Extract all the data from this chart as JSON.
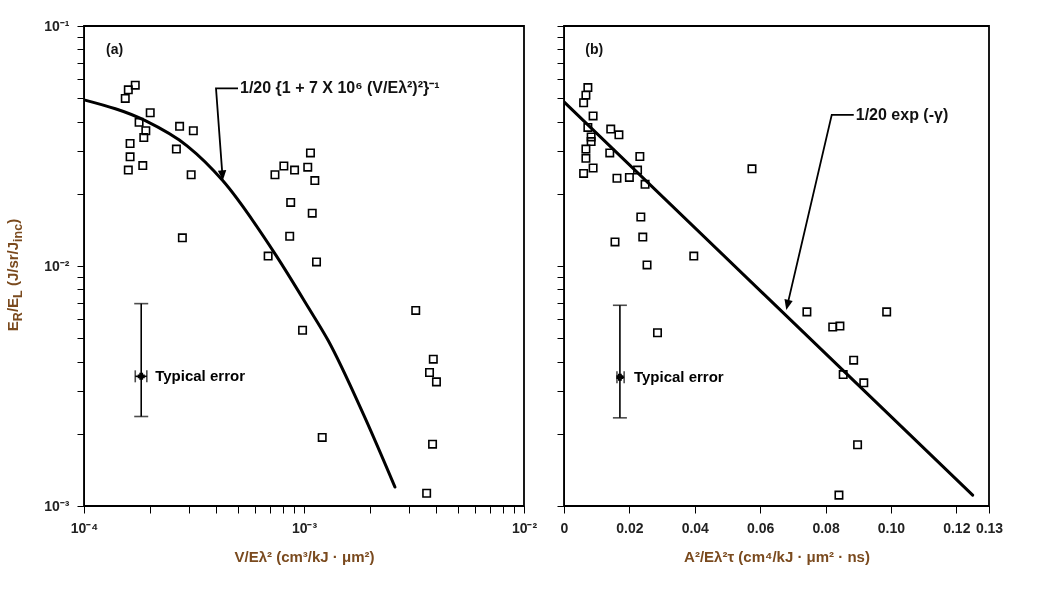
{
  "chart_data": [
    {
      "type": "scatter",
      "xlabel": "V/Eλ² (cm³/kJ · μm²)",
      "ylabel": "E$_{R}$/E$_{L}$ (J/sr/J$_{inc}$)",
      "log": "xy",
      "xlim": [
        0.0001,
        0.01
      ],
      "ylim": [
        0.001,
        0.1
      ],
      "xticks": [
        {
          "value": 0.0001,
          "label": "10⁻⁴"
        },
        {
          "value": 0.0002,
          "label": null
        },
        {
          "value": 0.0003,
          "label": null
        },
        {
          "value": 0.0004,
          "label": null
        },
        {
          "value": 0.0005,
          "label": null
        },
        {
          "value": 0.0006,
          "label": null
        },
        {
          "value": 0.0007,
          "label": null
        },
        {
          "value": 0.0008,
          "label": null
        },
        {
          "value": 0.0009,
          "label": null
        },
        {
          "value": 0.001,
          "label": "10⁻³"
        },
        {
          "value": 0.002,
          "label": null
        },
        {
          "value": 0.003,
          "label": null
        },
        {
          "value": 0.004,
          "label": null
        },
        {
          "value": 0.005,
          "label": null
        },
        {
          "value": 0.006,
          "label": null
        },
        {
          "value": 0.007,
          "label": null
        },
        {
          "value": 0.008,
          "label": null
        },
        {
          "value": 0.009,
          "label": null
        },
        {
          "value": 0.01,
          "label": "10⁻²"
        }
      ],
      "yticks": [
        {
          "value": 0.001,
          "label": "10⁻³"
        },
        {
          "value": 0.002,
          "label": null
        },
        {
          "value": 0.003,
          "label": null
        },
        {
          "value": 0.004,
          "label": null
        },
        {
          "value": 0.005,
          "label": null
        },
        {
          "value": 0.006,
          "label": null
        },
        {
          "value": 0.007,
          "label": null
        },
        {
          "value": 0.008,
          "label": null
        },
        {
          "value": 0.009,
          "label": null
        },
        {
          "value": 0.01,
          "label": "10⁻²"
        },
        {
          "value": 0.02,
          "label": null
        },
        {
          "value": 0.03,
          "label": null
        },
        {
          "value": 0.04,
          "label": null
        },
        {
          "value": 0.05,
          "label": null
        },
        {
          "value": 0.06,
          "label": null
        },
        {
          "value": 0.07,
          "label": null
        },
        {
          "value": 0.08,
          "label": null
        },
        {
          "value": 0.09,
          "label": null
        },
        {
          "value": 0.1,
          "label": "10⁻¹"
        }
      ],
      "annotations": [
        "(a)",
        "1/20 {1 + 7 X 10⁶ (V/Eλ²)²}⁻¹"
      ],
      "series": [
        {
          "type": "scatter",
          "marker": "square",
          "color": "#000000",
          "x": [
            0.000171,
            0.000159,
            0.000154,
            0.0002,
            0.000178,
            0.000191,
            0.000187,
            0.000162,
            0.000162,
            0.000185,
            0.000159,
            0.000272,
            0.000314,
            0.000263,
            0.000307,
            0.00028,
            0.000738,
            0.00081,
            0.000906,
            0.00104,
            0.00107,
            0.00112,
            0.00087,
            0.00109,
            0.000861,
            0.000687,
            0.00114,
            0.00322,
            0.000985,
            0.00387,
            0.00372,
            0.004,
            0.00121,
            0.00384,
            0.00361
          ],
          "values": [
            0.0567,
            0.0542,
            0.0499,
            0.0435,
            0.0397,
            0.0366,
            0.0343,
            0.0324,
            0.0285,
            0.0262,
            0.0251,
            0.0382,
            0.0366,
            0.0307,
            0.024,
            0.0131,
            0.024,
            0.0261,
            0.0251,
            0.0258,
            0.0296,
            0.0227,
            0.0184,
            0.0166,
            0.0133,
            0.011,
            0.0104,
            0.00653,
            0.0054,
            0.00409,
            0.0036,
            0.00329,
            0.00193,
            0.00181,
            0.00113
          ]
        },
        {
          "type": "line",
          "color": "#000000",
          "line_style": "solid",
          "x": [
            0.000102,
            0.000189,
            0.000295,
            0.000427,
            0.000745,
            0.00104,
            0.00129,
            0.00187,
            0.00259
          ],
          "values": [
            0.049,
            0.0404,
            0.0316,
            0.0227,
            0.0111,
            0.00678,
            0.00488,
            0.00239,
            0.0012
          ]
        },
        {
          "type": "scatter",
          "name": "Typical error",
          "color": "#000000",
          "marker": "cross",
          "x": [
            0.000182
          ],
          "values": [
            0.00347
          ],
          "errors": [
            [
              0.00236,
              0.00697
            ]
          ],
          "xerrors": [
            [
              0.000171,
              0.000193
            ]
          ]
        }
      ]
    },
    {
      "type": "scatter",
      "xlabel": "A²/Eλ²τ (cm⁴/kJ · μm² · ns)",
      "log": "y",
      "tick_labels": "x",
      "xlim": [
        0,
        0.13
      ],
      "ylim": [
        0.001,
        0.1
      ],
      "xticks": [
        0,
        0.02,
        0.04,
        0.06,
        0.08,
        {
          "value": 0.1,
          "label": "0.10"
        },
        0.12,
        0.13
      ],
      "yticks": [
        0.001,
        0.002,
        0.003,
        0.004,
        0.005,
        0.006,
        0.007,
        0.008,
        0.009,
        0.01,
        0.02,
        0.03,
        0.04,
        0.05,
        0.06,
        0.07,
        0.08,
        0.09,
        0.1
      ],
      "annotations": [
        "(b)",
        "1/20 exp (-γ)"
      ],
      "series": [
        {
          "type": "scatter",
          "marker": "square",
          "color": "#000000",
          "x": [
            0.0073,
            0.0067,
            0.006,
            0.0089,
            0.0073,
            0.0143,
            0.0168,
            0.0083,
            0.0083,
            0.0067,
            0.014,
            0.0067,
            0.0232,
            0.0089,
            0.006,
            0.0162,
            0.02,
            0.0225,
            0.0248,
            0.0575,
            0.0235,
            0.0156,
            0.0241,
            0.0254,
            0.0397,
            0.0743,
            0.0987,
            0.0822,
            0.0844,
            0.0286,
            0.0886,
            0.0854,
            0.0917,
            0.0898,
            0.0841
          ],
          "values": [
            0.0554,
            0.0515,
            0.0479,
            0.0422,
            0.0378,
            0.0372,
            0.0352,
            0.0345,
            0.033,
            0.0307,
            0.0296,
            0.0281,
            0.0286,
            0.0256,
            0.0243,
            0.0232,
            0.0234,
            0.0251,
            0.0219,
            0.0254,
            0.016,
            0.0126,
            0.0132,
            0.0101,
            0.011,
            0.00644,
            0.00644,
            0.00557,
            0.00562,
            0.00527,
            0.00405,
            0.00353,
            0.00326,
            0.0018,
            0.00111
          ]
        },
        {
          "type": "line",
          "color": "#000000",
          "line_style": "solid",
          "x": [
            0,
            0.125
          ],
          "values": [
            0.0483,
            0.00111
          ]
        },
        {
          "type": "scatter",
          "name": "Typical error",
          "color": "#000000",
          "marker": "cross",
          "x": [
            0.0171
          ],
          "values": [
            0.00344
          ],
          "errors": [
            [
              0.00233,
              0.00686
            ]
          ],
          "xerrors": [
            [
              0.0162,
              0.0184
            ]
          ]
        }
      ]
    }
  ]
}
